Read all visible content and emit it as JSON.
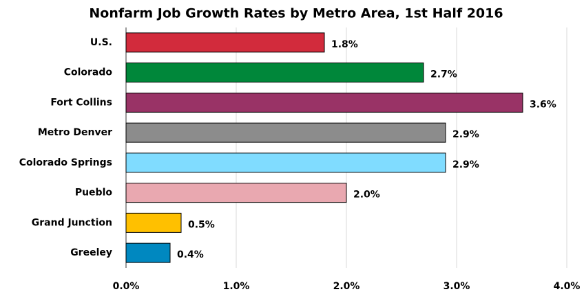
{
  "chart_data": {
    "type": "bar",
    "orientation": "horizontal",
    "title": "Nonfarm Job Growth Rates by Metro Area, 1st Half 2016",
    "categories": [
      "U.S.",
      "Colorado",
      "Fort Collins",
      "Metro Denver",
      "Colorado Springs",
      "Pueblo",
      "Grand Junction",
      "Greeley"
    ],
    "values": [
      1.8,
      2.7,
      3.6,
      2.9,
      2.9,
      2.0,
      0.5,
      0.4
    ],
    "value_labels": [
      "1.8%",
      "2.7%",
      "3.6%",
      "2.9%",
      "2.9%",
      "2.0%",
      "0.5%",
      "0.4%"
    ],
    "colors": [
      "#d22b3c",
      "#00873a",
      "#993366",
      "#8c8c8c",
      "#80dcff",
      "#e9a8b0",
      "#ffc000",
      "#0088c0"
    ],
    "xlim": [
      0,
      4
    ],
    "xticks": [
      {
        "value": 0,
        "label": "0.0%"
      },
      {
        "value": 1,
        "label": "1.0%"
      },
      {
        "value": 2,
        "label": "2.0%"
      },
      {
        "value": 3,
        "label": "3.0%"
      },
      {
        "value": 4,
        "label": "4.0%"
      }
    ],
    "grid": true
  }
}
